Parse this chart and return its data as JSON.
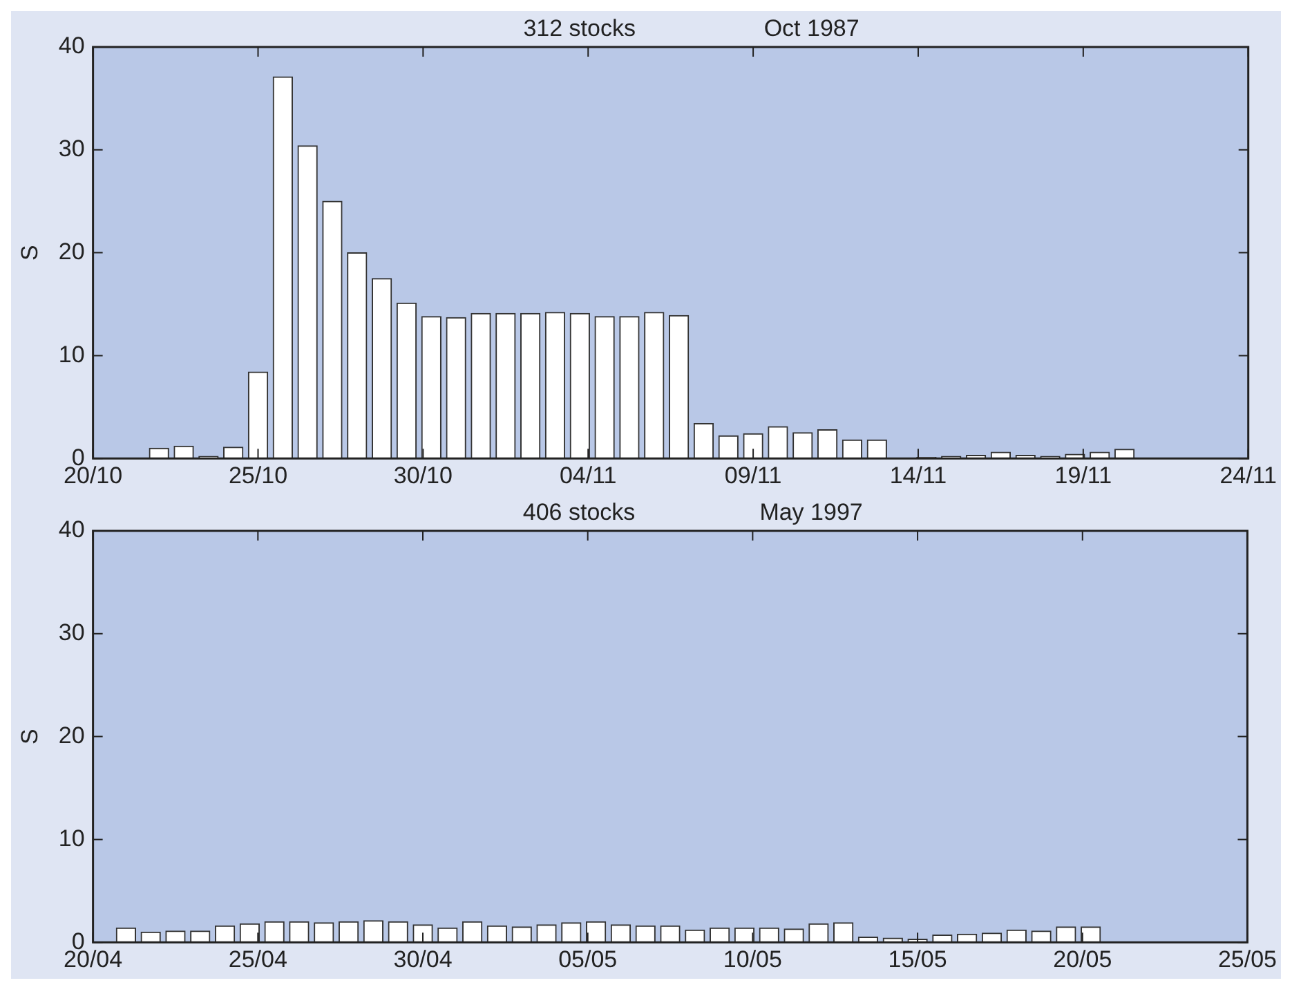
{
  "chart_data": [
    {
      "type": "bar",
      "title": "312 stocks",
      "subtitle": "Oct 1987",
      "ylabel": "S",
      "color": "#ffffff",
      "x": [
        "1987-10-22T00:00",
        "1987-10-22T18:00",
        "1987-10-23T12:00",
        "1987-10-24T06:00",
        "1987-10-25T00:00",
        "1987-10-25T18:00",
        "1987-10-26T12:00",
        "1987-10-27T06:00",
        "1987-10-28T00:00",
        "1987-10-28T18:00",
        "1987-10-29T12:00",
        "1987-10-30T06:00",
        "1987-10-31T00:00",
        "1987-10-31T18:00",
        "1987-11-01T12:00",
        "1987-11-02T06:00",
        "1987-11-03T00:00",
        "1987-11-03T18:00",
        "1987-11-04T12:00",
        "1987-11-05T06:00",
        "1987-11-06T00:00",
        "1987-11-06T18:00",
        "1987-11-07T12:00",
        "1987-11-08T06:00",
        "1987-11-09T00:00",
        "1987-11-09T18:00",
        "1987-11-10T12:00",
        "1987-11-11T06:00",
        "1987-11-12T00:00",
        "1987-11-12T18:00",
        "1987-11-13T12:00",
        "1987-11-14T06:00",
        "1987-11-15T00:00",
        "1987-11-15T18:00",
        "1987-11-16T12:00",
        "1987-11-17T06:00",
        "1987-11-18T00:00",
        "1987-11-18T18:00",
        "1987-11-19T12:00",
        "1987-11-20T06:00"
      ],
      "values": [
        1.0,
        1.2,
        0.2,
        1.1,
        8.4,
        37.1,
        30.4,
        25,
        20,
        17.5,
        15.1,
        13.8,
        13.7,
        14.1,
        14.1,
        14.1,
        14.2,
        14.1,
        13.8,
        13.8,
        14.2,
        13.9,
        3.4,
        2.2,
        2.4,
        3.1,
        2.5,
        2.8,
        1.8,
        1.8,
        0,
        0.1,
        0.2,
        0.3,
        0.6,
        0.3,
        0.2,
        0.4,
        0.6,
        0.9
      ],
      "xlim": [
        "1987-10-20",
        "1987-11-24"
      ],
      "xticks": [
        {
          "value": "1987-10-20",
          "label": "20/10"
        },
        {
          "value": "1987-10-25",
          "label": "25/10"
        },
        {
          "value": "1987-10-30",
          "label": "30/10"
        },
        {
          "value": "1987-11-04",
          "label": "04/11"
        },
        {
          "value": "1987-11-09",
          "label": "09/11"
        },
        {
          "value": "1987-11-14",
          "label": "14/11"
        },
        {
          "value": "1987-11-19",
          "label": "19/11"
        },
        {
          "value": "1987-11-24",
          "label": "24/11"
        }
      ],
      "ylim": [
        0,
        40
      ],
      "yticks": [
        0,
        10,
        20,
        30,
        40
      ],
      "grid": false
    },
    {
      "type": "bar",
      "title": "406 stocks",
      "subtitle": "May 1997",
      "ylabel": "S",
      "color": "#ffffff",
      "x": [
        "1997-04-21T00:00",
        "1997-04-21T18:00",
        "1997-04-22T12:00",
        "1997-04-23T06:00",
        "1997-04-24T00:00",
        "1997-04-24T18:00",
        "1997-04-25T12:00",
        "1997-04-26T06:00",
        "1997-04-27T00:00",
        "1997-04-27T18:00",
        "1997-04-28T12:00",
        "1997-04-29T06:00",
        "1997-04-30T00:00",
        "1997-04-30T18:00",
        "1997-05-01T12:00",
        "1997-05-02T06:00",
        "1997-05-03T00:00",
        "1997-05-03T18:00",
        "1997-05-04T12:00",
        "1997-05-05T06:00",
        "1997-05-06T00:00",
        "1997-05-06T18:00",
        "1997-05-07T12:00",
        "1997-05-08T06:00",
        "1997-05-09T00:00",
        "1997-05-09T18:00",
        "1997-05-10T12:00",
        "1997-05-11T06:00",
        "1997-05-12T00:00",
        "1997-05-12T18:00",
        "1997-05-13T12:00",
        "1997-05-14T06:00",
        "1997-05-15T00:00",
        "1997-05-15T18:00",
        "1997-05-16T12:00",
        "1997-05-17T06:00",
        "1997-05-18T00:00",
        "1997-05-18T18:00",
        "1997-05-19T12:00",
        "1997-05-20T06:00"
      ],
      "values": [
        1.4,
        1.0,
        1.1,
        1.1,
        1.6,
        1.8,
        2.0,
        2.0,
        1.9,
        2.0,
        2.1,
        2.0,
        1.7,
        1.4,
        2.0,
        1.6,
        1.5,
        1.7,
        1.9,
        2.0,
        1.7,
        1.6,
        1.6,
        1.2,
        1.4,
        1.4,
        1.4,
        1.3,
        1.8,
        1.9,
        0.5,
        0.4,
        0.3,
        0.7,
        0.8,
        0.9,
        1.2,
        1.1,
        1.5,
        1.5
      ],
      "xlim": [
        "1997-04-20",
        "1997-05-25"
      ],
      "xticks": [
        {
          "value": "1997-04-20",
          "label": "20/04"
        },
        {
          "value": "1997-04-25",
          "label": "25/04"
        },
        {
          "value": "1997-04-30",
          "label": "30/04"
        },
        {
          "value": "1997-05-05",
          "label": "05/05"
        },
        {
          "value": "1997-05-10",
          "label": "10/05"
        },
        {
          "value": "1997-05-15",
          "label": "15/05"
        },
        {
          "value": "1997-05-20",
          "label": "20/05"
        },
        {
          "value": "1997-05-25",
          "label": "25/05"
        }
      ],
      "ylim": [
        0,
        40
      ],
      "yticks": [
        0,
        10,
        20,
        30,
        40
      ],
      "grid": false
    }
  ]
}
